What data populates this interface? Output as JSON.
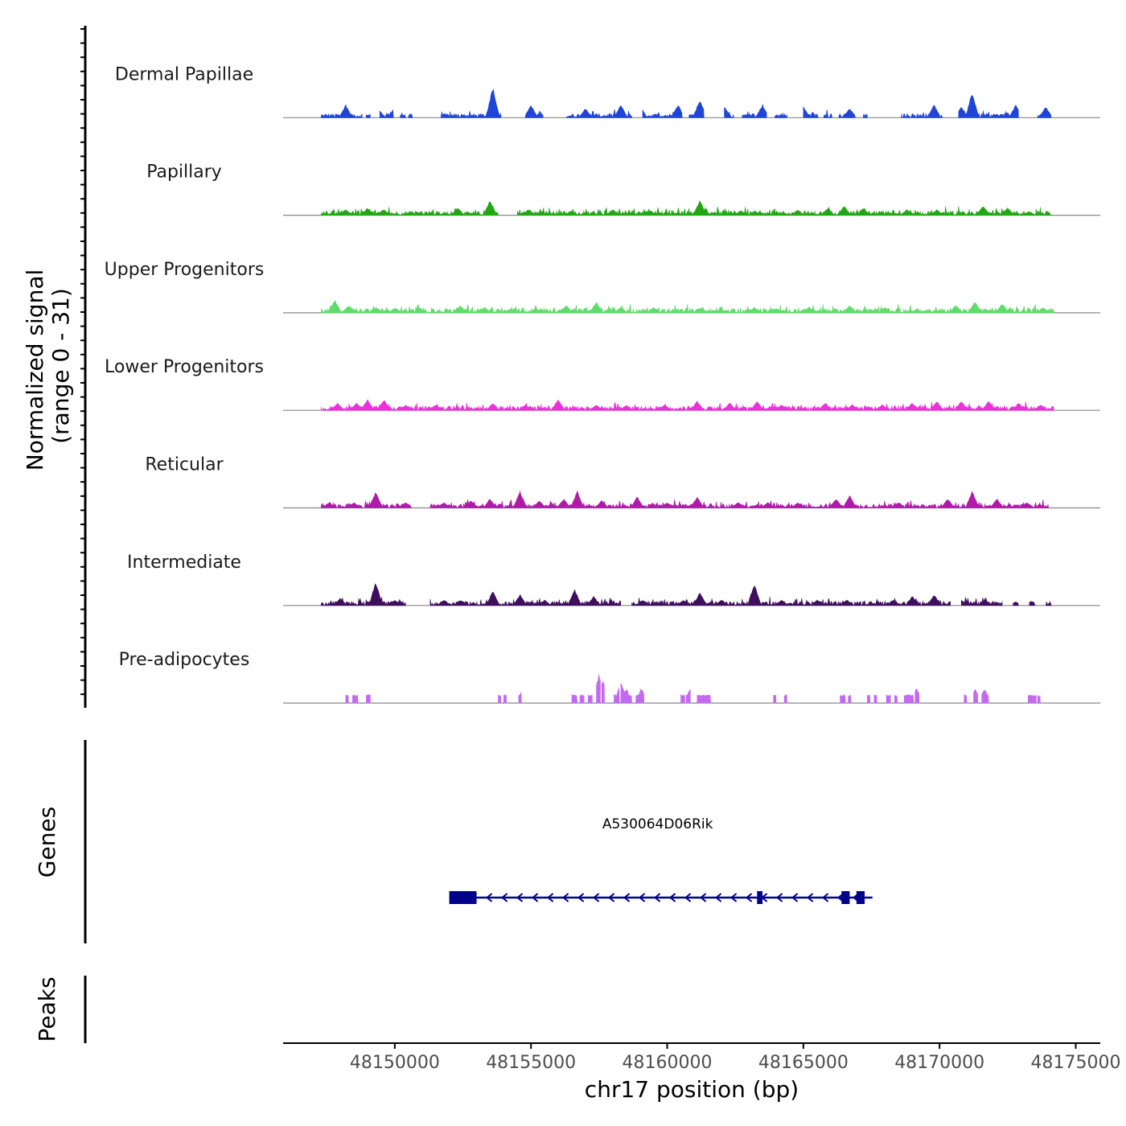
{
  "chart_data": {
    "type": "area",
    "title": "",
    "chromosome": "chr17",
    "xlabel": "chr17 position (bp)",
    "ylabel_line1": "Normalized signal",
    "ylabel_line2": "(range 0 - 31)",
    "ylim": [
      0,
      31
    ],
    "xlim": [
      48145900,
      48175900
    ],
    "xticks": [
      48150000,
      48155000,
      48160000,
      48165000,
      48170000,
      48175000
    ],
    "xtick_labels": [
      "48150000",
      "48155000",
      "48160000",
      "48165000",
      "48170000",
      "48175000"
    ],
    "series": [
      {
        "name": "Dermal Papillae",
        "color": "#1f44d6",
        "segments": [
          [
            48147300,
            48148800
          ],
          [
            48148950,
            48149100
          ],
          [
            48149450,
            48149950
          ],
          [
            48150200,
            48150400
          ],
          [
            48150500,
            48150650
          ],
          [
            48151700,
            48153900
          ],
          [
            48154800,
            48155450
          ],
          [
            48156300,
            48158700
          ],
          [
            48159100,
            48160550
          ],
          [
            48160800,
            48161350
          ],
          [
            48162100,
            48162450
          ],
          [
            48162750,
            48163650
          ],
          [
            48163950,
            48164400
          ],
          [
            48165000,
            48165550
          ],
          [
            48165750,
            48166050
          ],
          [
            48166300,
            48166900
          ],
          [
            48167200,
            48167350
          ],
          [
            48168600,
            48170100
          ],
          [
            48170700,
            48172900
          ],
          [
            48173600,
            48174100
          ]
        ],
        "peaks": [
          [
            48148200,
            7
          ],
          [
            48149400,
            5
          ],
          [
            48150000,
            6
          ],
          [
            48153600,
            17
          ],
          [
            48155000,
            7
          ],
          [
            48157000,
            5
          ],
          [
            48158300,
            7
          ],
          [
            48159000,
            7
          ],
          [
            48160400,
            7
          ],
          [
            48161200,
            10
          ],
          [
            48162100,
            6
          ],
          [
            48163500,
            7
          ],
          [
            48165000,
            6
          ],
          [
            48166700,
            5
          ],
          [
            48169800,
            7
          ],
          [
            48170800,
            6
          ],
          [
            48171200,
            14
          ],
          [
            48172800,
            7
          ],
          [
            48173900,
            6
          ]
        ]
      },
      {
        "name": "Papillary",
        "color": "#1fa812",
        "segments": [
          [
            48147300,
            48153800
          ],
          [
            48154500,
            48174100
          ]
        ],
        "peaks": [
          [
            48148200,
            3
          ],
          [
            48149000,
            4
          ],
          [
            48149600,
            3
          ],
          [
            48152300,
            4
          ],
          [
            48153500,
            8
          ],
          [
            48154900,
            3
          ],
          [
            48156500,
            2.5
          ],
          [
            48158000,
            3
          ],
          [
            48159400,
            2.5
          ],
          [
            48161200,
            8
          ],
          [
            48162700,
            2.5
          ],
          [
            48163400,
            2
          ],
          [
            48164800,
            3
          ],
          [
            48165900,
            4
          ],
          [
            48166500,
            5
          ],
          [
            48167200,
            4
          ],
          [
            48168800,
            3
          ],
          [
            48169900,
            3
          ],
          [
            48171600,
            5
          ],
          [
            48172500,
            4
          ],
          [
            48173300,
            2
          ]
        ]
      },
      {
        "name": "Upper Progenitors",
        "color": "#5fdc6a",
        "segments": [
          [
            48147300,
            48174200
          ]
        ],
        "peaks": [
          [
            48147800,
            7
          ],
          [
            48148300,
            4
          ],
          [
            48149300,
            3
          ],
          [
            48150000,
            2.5
          ],
          [
            48152400,
            4
          ],
          [
            48153300,
            3
          ],
          [
            48155200,
            2
          ],
          [
            48156300,
            4
          ],
          [
            48157400,
            6
          ],
          [
            48158300,
            3
          ],
          [
            48159500,
            3
          ],
          [
            48161200,
            2.5
          ],
          [
            48163200,
            3
          ],
          [
            48164000,
            2.5
          ],
          [
            48165200,
            3
          ],
          [
            48166700,
            4
          ],
          [
            48168000,
            3
          ],
          [
            48170600,
            4
          ],
          [
            48171300,
            6
          ],
          [
            48172300,
            5
          ],
          [
            48173800,
            3
          ]
        ]
      },
      {
        "name": "Lower Progenitors",
        "color": "#ee2fdc",
        "segments": [
          [
            48147300,
            48174200
          ]
        ],
        "peaks": [
          [
            48147900,
            4
          ],
          [
            48148600,
            4
          ],
          [
            48149000,
            6
          ],
          [
            48149600,
            6
          ],
          [
            48150400,
            3
          ],
          [
            48151500,
            3
          ],
          [
            48153600,
            4
          ],
          [
            48154800,
            3
          ],
          [
            48156000,
            6
          ],
          [
            48157400,
            3
          ],
          [
            48158500,
            3
          ],
          [
            48159900,
            3
          ],
          [
            48161100,
            5
          ],
          [
            48162300,
            4
          ],
          [
            48163300,
            5
          ],
          [
            48164200,
            3
          ],
          [
            48165800,
            4
          ],
          [
            48166800,
            3
          ],
          [
            48167900,
            3
          ],
          [
            48169000,
            4
          ],
          [
            48169900,
            5
          ],
          [
            48170800,
            5
          ],
          [
            48171800,
            5
          ],
          [
            48172900,
            4
          ],
          [
            48173700,
            3
          ]
        ]
      },
      {
        "name": "Reticular",
        "color": "#b01aa8",
        "segments": [
          [
            48147300,
            48150600
          ],
          [
            48151300,
            48174000
          ]
        ],
        "peaks": [
          [
            48147600,
            3
          ],
          [
            48148500,
            3
          ],
          [
            48149300,
            9
          ],
          [
            48150400,
            3
          ],
          [
            48151800,
            3
          ],
          [
            48152800,
            4
          ],
          [
            48153500,
            5
          ],
          [
            48154600,
            9
          ],
          [
            48155300,
            4
          ],
          [
            48156200,
            5
          ],
          [
            48156700,
            9
          ],
          [
            48157600,
            4
          ],
          [
            48158900,
            6
          ],
          [
            48160000,
            3
          ],
          [
            48161100,
            6
          ],
          [
            48162600,
            3
          ],
          [
            48163700,
            3
          ],
          [
            48164800,
            3
          ],
          [
            48166200,
            5
          ],
          [
            48166700,
            7
          ],
          [
            48168500,
            3
          ],
          [
            48170300,
            5
          ],
          [
            48171200,
            9
          ],
          [
            48172100,
            5
          ],
          [
            48173200,
            3
          ]
        ]
      },
      {
        "name": "Intermediate",
        "color": "#3f0f5e",
        "segments": [
          [
            48147300,
            48150400
          ],
          [
            48151300,
            48158300
          ],
          [
            48158700,
            48170400
          ],
          [
            48170800,
            48172300
          ],
          [
            48172700,
            48172900
          ],
          [
            48173300,
            48173500
          ],
          [
            48173900,
            48174100
          ]
        ],
        "peaks": [
          [
            48148000,
            4
          ],
          [
            48149300,
            13
          ],
          [
            48150000,
            3
          ],
          [
            48151800,
            3
          ],
          [
            48152400,
            3
          ],
          [
            48153600,
            8
          ],
          [
            48154600,
            6
          ],
          [
            48155500,
            3
          ],
          [
            48156600,
            9
          ],
          [
            48157300,
            5
          ],
          [
            48158400,
            4
          ],
          [
            48159100,
            3
          ],
          [
            48160600,
            3
          ],
          [
            48161200,
            7
          ],
          [
            48162000,
            3
          ],
          [
            48163200,
            12
          ],
          [
            48164200,
            3
          ],
          [
            48165500,
            3
          ],
          [
            48166600,
            3
          ],
          [
            48168300,
            3
          ],
          [
            48169000,
            5
          ],
          [
            48169800,
            6
          ],
          [
            48170800,
            3
          ],
          [
            48171700,
            3
          ],
          [
            48172800,
            2
          ],
          [
            48173300,
            2
          ]
        ]
      },
      {
        "name": "Pre-adipocytes",
        "color": "#c46af0",
        "segments": [
          [
            48148200,
            48148300
          ],
          [
            48148450,
            48148650
          ],
          [
            48148950,
            48149100
          ],
          [
            48153800,
            48153900
          ],
          [
            48154000,
            48154100
          ],
          [
            48154550,
            48154650
          ],
          [
            48156500,
            48156700
          ],
          [
            48156800,
            48156950
          ],
          [
            48157100,
            48157250
          ],
          [
            48157400,
            48157550
          ],
          [
            48157600,
            48157700
          ],
          [
            48158050,
            48158250
          ],
          [
            48158300,
            48158700
          ],
          [
            48158850,
            48159150
          ],
          [
            48160500,
            48160650
          ],
          [
            48160700,
            48160850
          ],
          [
            48161100,
            48161600
          ],
          [
            48163900,
            48164000
          ],
          [
            48164300,
            48164400
          ],
          [
            48166350,
            48166550
          ],
          [
            48166650,
            48166750
          ],
          [
            48167350,
            48167450
          ],
          [
            48167600,
            48167700
          ],
          [
            48168050,
            48168200
          ],
          [
            48168350,
            48168450
          ],
          [
            48168700,
            48169050
          ],
          [
            48169100,
            48169250
          ],
          [
            48170900,
            48171000
          ],
          [
            48171250,
            48171400
          ],
          [
            48171550,
            48171800
          ],
          [
            48173250,
            48173550
          ],
          [
            48173600,
            48173700
          ]
        ],
        "peaks": [
          [
            48154700,
            8
          ],
          [
            48157500,
            16
          ],
          [
            48157650,
            13
          ],
          [
            48158300,
            12
          ],
          [
            48158500,
            8
          ],
          [
            48159050,
            8
          ],
          [
            48160850,
            8
          ],
          [
            48169150,
            8
          ],
          [
            48171300,
            8
          ],
          [
            48171650,
            8
          ]
        ],
        "baseline_height": 4
      }
    ],
    "gene": {
      "name": "A530064D06Rik",
      "strand": "-",
      "start": 48152000,
      "end": 48167300,
      "exons": [
        [
          48152000,
          48153000
        ],
        [
          48163300,
          48163500
        ],
        [
          48166400,
          48166700
        ],
        [
          48166950,
          48167250
        ]
      ]
    },
    "panels": {
      "genes": "Genes",
      "peaks": "Peaks"
    },
    "peaks_track": []
  }
}
